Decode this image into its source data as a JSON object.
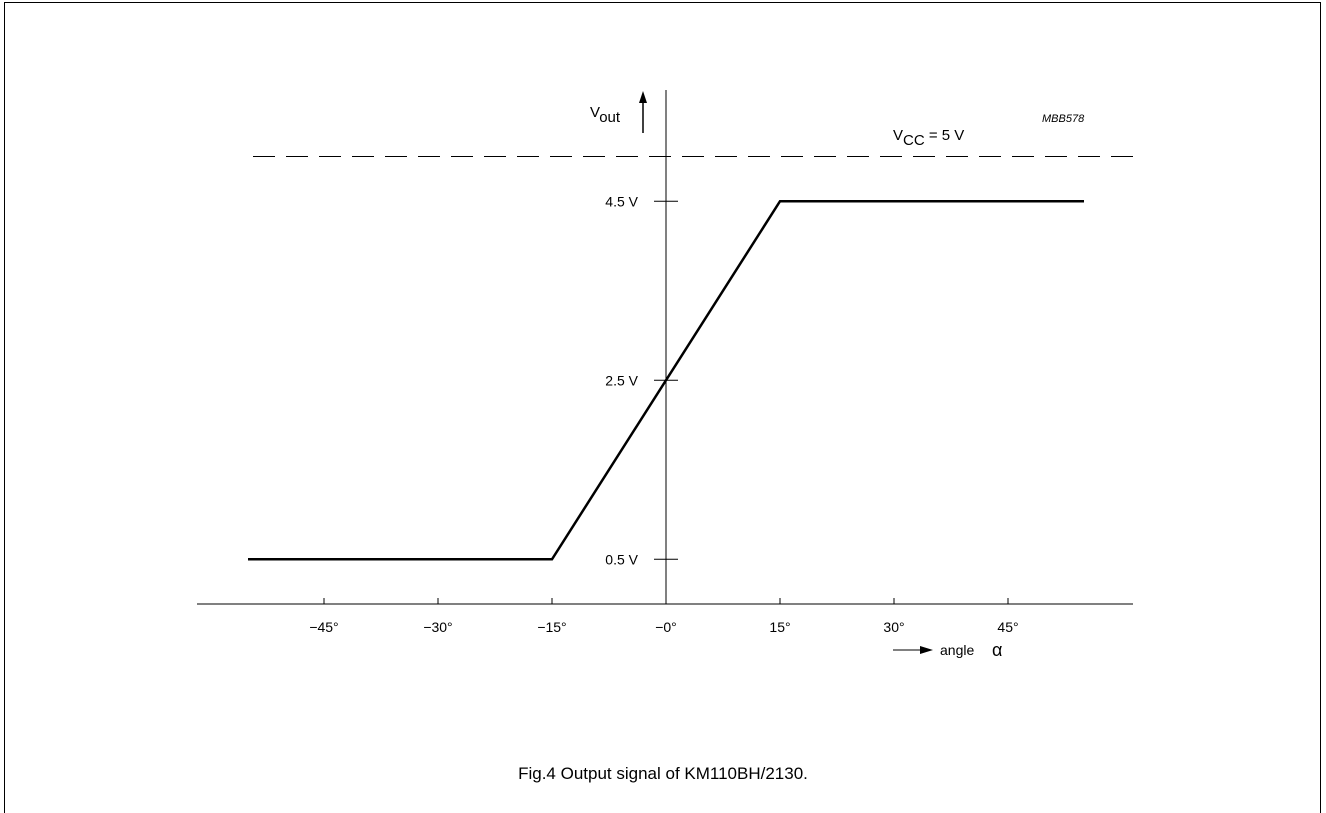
{
  "chart_data": {
    "type": "line",
    "figure_code": "MBB578",
    "caption": "Fig.4  Output signal of KM110BH/2130.",
    "x_tick_labels": [
      "−45°",
      "−30°",
      "−15°",
      "−0°",
      "15°",
      "30°",
      "45°"
    ],
    "x_ticks": [
      -45,
      -30,
      -15,
      0,
      15,
      30,
      45
    ],
    "y_tick_labels": [
      "0.5 V",
      "2.5 V",
      "4.5 V"
    ],
    "y_ticks": [
      0.5,
      2.5,
      4.5
    ],
    "xlim": [
      -60,
      60
    ],
    "ylim": [
      0,
      5.6
    ],
    "ylabel_main": "V",
    "ylabel_sub": "out",
    "xlabel": "angle",
    "xlabel_symbol": "α",
    "reference_line": {
      "y": 5,
      "label_main": "V",
      "label_sub": "CC",
      "label_rest": " = 5 V",
      "style": "dashed"
    },
    "series": [
      {
        "x": [
          -55,
          -15,
          15,
          55
        ],
        "y": [
          0.5,
          0.5,
          4.5,
          4.5
        ]
      }
    ],
    "grid": false
  }
}
